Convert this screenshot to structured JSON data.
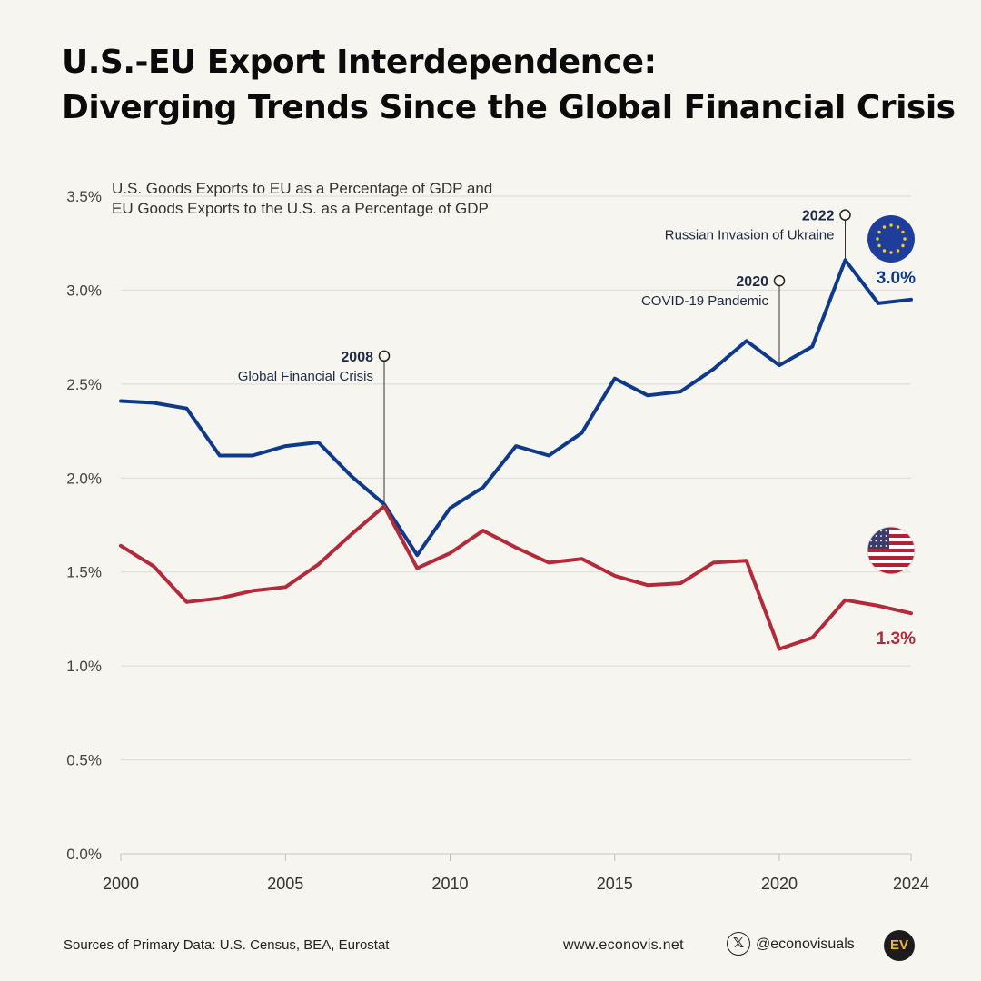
{
  "title": {
    "line1": "U.S.-EU Export Interdependence:",
    "line2": "Diverging Trends Since the Global Financial Crisis"
  },
  "footer": {
    "sources": "Sources of Primary Data: U.S. Census, BEA, Eurostat",
    "website": "www.econovis.net",
    "x_icon": "x-logo-icon",
    "handle": "@econovisuals",
    "logo_text": "EV"
  },
  "chart_data": {
    "type": "line",
    "title": "U.S.-EU Export Interdependence: Diverging Trends Since the Global Financial Crisis",
    "subtitle_lines": [
      "U.S. Goods Exports to EU as a Percentage of GDP and",
      "EU Goods Exports to the U.S. as a Percentage of GDP"
    ],
    "xlabel": "",
    "ylabel": "",
    "ylim": [
      0,
      3.5
    ],
    "xlim": [
      2000,
      2024
    ],
    "grid": true,
    "y_ticks": [
      0,
      0.5,
      1.0,
      1.5,
      2.0,
      2.5,
      3.0,
      3.5
    ],
    "y_tick_labels": [
      "0.0%",
      "0.5%",
      "1.0%",
      "1.5%",
      "2.0%",
      "2.5%",
      "3.0%",
      "3.5%"
    ],
    "x_ticks": [
      2000,
      2005,
      2010,
      2015,
      2020,
      2024
    ],
    "x_tick_labels": [
      "2000",
      "2005",
      "2010",
      "2015",
      "2020",
      "2024"
    ],
    "x": [
      2000,
      2001,
      2002,
      2003,
      2004,
      2005,
      2006,
      2007,
      2008,
      2009,
      2010,
      2011,
      2012,
      2013,
      2014,
      2015,
      2016,
      2017,
      2018,
      2019,
      2020,
      2021,
      2022,
      2023,
      2024
    ],
    "series": [
      {
        "name": "EU Goods Exports to the U.S. as a Percentage of GDP",
        "flag": "eu-flag-icon",
        "color": "#0f3a8c",
        "end_label": "3.0%",
        "values": [
          2.41,
          2.4,
          2.37,
          2.12,
          2.12,
          2.17,
          2.19,
          2.01,
          1.86,
          1.59,
          1.84,
          1.95,
          2.17,
          2.12,
          2.24,
          2.53,
          2.44,
          2.46,
          2.58,
          2.73,
          2.6,
          2.7,
          3.16,
          2.93,
          2.95
        ]
      },
      {
        "name": "U.S. Goods Exports to EU as a Percentage of GDP",
        "flag": "us-flag-icon",
        "color": "#b32a3a",
        "end_label": "1.3%",
        "values": [
          1.64,
          1.53,
          1.34,
          1.36,
          1.4,
          1.42,
          1.54,
          1.7,
          1.85,
          1.52,
          1.6,
          1.72,
          1.63,
          1.55,
          1.57,
          1.48,
          1.43,
          1.44,
          1.55,
          1.56,
          1.09,
          1.15,
          1.35,
          1.32,
          1.28
        ]
      }
    ],
    "annotations": [
      {
        "year": 2008,
        "value": 2.65,
        "anchor": 1.86,
        "year_label": "2008",
        "text": "Global Financial Crisis"
      },
      {
        "year": 2020,
        "value": 3.05,
        "anchor": 2.6,
        "year_label": "2020",
        "text": "COVID-19 Pandemic"
      },
      {
        "year": 2022,
        "value": 3.4,
        "anchor": 3.16,
        "year_label": "2022",
        "text": "Russian Invasion of Ukraine"
      }
    ]
  }
}
